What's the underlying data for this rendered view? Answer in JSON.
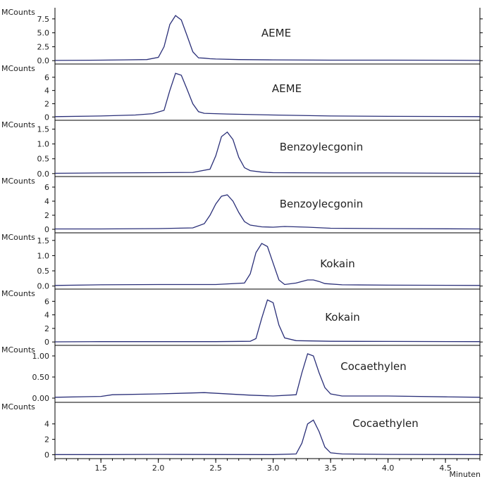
{
  "chart_data": {
    "type": "line",
    "y_unit_label": "MCounts",
    "x_unit_label": "Minuten",
    "x_range": [
      1.1,
      4.8
    ],
    "x_ticks": [
      {
        "v": 1.5,
        "label": "1.5"
      },
      {
        "v": 2.0,
        "label": "2.0"
      },
      {
        "v": 2.5,
        "label": "2.5"
      },
      {
        "v": 3.0,
        "label": "3.0"
      },
      {
        "v": 3.5,
        "label": "3.5"
      },
      {
        "v": 4.0,
        "label": "4.0"
      },
      {
        "v": 4.5,
        "label": "4.5"
      }
    ],
    "panels": [
      {
        "name": "AEME",
        "ylim": [
          -0.6,
          9.5
        ],
        "y_ticks": [
          {
            "v": 0,
            "label": "0.0"
          },
          {
            "v": 2.5,
            "label": "2.5"
          },
          {
            "v": 5,
            "label": "5.0"
          },
          {
            "v": 7.5,
            "label": "7.5"
          }
        ],
        "x": [
          1.1,
          1.5,
          1.7,
          1.9,
          2.0,
          2.05,
          2.1,
          2.15,
          2.2,
          2.25,
          2.3,
          2.35,
          2.4,
          2.45,
          2.5,
          2.7,
          3.0,
          3.5,
          4.0,
          4.5,
          4.8
        ],
        "y": [
          0.05,
          0.1,
          0.15,
          0.2,
          0.6,
          2.5,
          6.5,
          8.1,
          7.3,
          4.5,
          1.6,
          0.5,
          0.45,
          0.35,
          0.3,
          0.2,
          0.15,
          0.1,
          0.1,
          0.08,
          0.05
        ]
      },
      {
        "name": "AEME",
        "ylim": [
          -0.5,
          8.0
        ],
        "y_ticks": [
          {
            "v": 0,
            "label": "0"
          },
          {
            "v": 2,
            "label": "2"
          },
          {
            "v": 4,
            "label": "4"
          },
          {
            "v": 6,
            "label": "6"
          }
        ],
        "x": [
          1.1,
          1.5,
          1.8,
          1.95,
          2.05,
          2.1,
          2.15,
          2.2,
          2.25,
          2.3,
          2.35,
          2.4,
          2.6,
          3.0,
          3.5,
          4.0,
          4.8
        ],
        "y": [
          0.05,
          0.15,
          0.3,
          0.5,
          1.0,
          4.0,
          6.6,
          6.3,
          4.2,
          2.0,
          0.8,
          0.55,
          0.45,
          0.3,
          0.15,
          0.1,
          0.05
        ]
      },
      {
        "name": "Benzoylecgonin",
        "ylim": [
          -0.1,
          1.8
        ],
        "y_ticks": [
          {
            "v": 0,
            "label": "0.0"
          },
          {
            "v": 0.5,
            "label": "0.5"
          },
          {
            "v": 1.0,
            "label": "1.0"
          },
          {
            "v": 1.5,
            "label": "1.5"
          }
        ],
        "x": [
          1.1,
          1.5,
          2.0,
          2.3,
          2.45,
          2.5,
          2.55,
          2.6,
          2.65,
          2.7,
          2.75,
          2.8,
          2.9,
          3.0,
          3.5,
          4.0,
          4.8
        ],
        "y": [
          0.01,
          0.02,
          0.03,
          0.04,
          0.15,
          0.6,
          1.25,
          1.4,
          1.15,
          0.55,
          0.2,
          0.1,
          0.05,
          0.03,
          0.02,
          0.02,
          0.01
        ]
      },
      {
        "name": "Benzoylecgonin",
        "ylim": [
          -0.5,
          7.5
        ],
        "y_ticks": [
          {
            "v": 0,
            "label": "0"
          },
          {
            "v": 2,
            "label": "2"
          },
          {
            "v": 4,
            "label": "4"
          },
          {
            "v": 6,
            "label": "6"
          }
        ],
        "x": [
          1.1,
          1.5,
          2.0,
          2.3,
          2.4,
          2.45,
          2.5,
          2.55,
          2.6,
          2.65,
          2.7,
          2.75,
          2.8,
          2.9,
          3.0,
          3.1,
          3.3,
          3.5,
          4.0,
          4.8
        ],
        "y": [
          0.05,
          0.05,
          0.1,
          0.2,
          0.8,
          2.0,
          3.6,
          4.7,
          4.9,
          4.0,
          2.4,
          1.1,
          0.6,
          0.35,
          0.3,
          0.4,
          0.3,
          0.15,
          0.1,
          0.05
        ]
      },
      {
        "name": "Kokain",
        "ylim": [
          -0.1,
          1.75
        ],
        "y_ticks": [
          {
            "v": 0,
            "label": "0.0"
          },
          {
            "v": 0.5,
            "label": "0.5"
          },
          {
            "v": 1.0,
            "label": "1.0"
          },
          {
            "v": 1.5,
            "label": "1.5"
          }
        ],
        "x": [
          1.1,
          1.5,
          2.0,
          2.5,
          2.75,
          2.8,
          2.85,
          2.9,
          2.95,
          3.0,
          3.05,
          3.1,
          3.2,
          3.3,
          3.35,
          3.4,
          3.45,
          3.6,
          4.0,
          4.8
        ],
        "y": [
          0.02,
          0.04,
          0.05,
          0.05,
          0.1,
          0.4,
          1.1,
          1.4,
          1.3,
          0.75,
          0.2,
          0.05,
          0.1,
          0.2,
          0.2,
          0.15,
          0.08,
          0.04,
          0.03,
          0.02
        ]
      },
      {
        "name": "Kokain",
        "ylim": [
          -0.5,
          7.8
        ],
        "y_ticks": [
          {
            "v": 0,
            "label": "0"
          },
          {
            "v": 2,
            "label": "2"
          },
          {
            "v": 4,
            "label": "4"
          },
          {
            "v": 6,
            "label": "6"
          }
        ],
        "x": [
          1.1,
          1.5,
          2.0,
          2.5,
          2.8,
          2.85,
          2.9,
          2.95,
          3.0,
          3.05,
          3.1,
          3.2,
          3.5,
          4.0,
          4.8
        ],
        "y": [
          0.02,
          0.05,
          0.05,
          0.05,
          0.1,
          0.5,
          3.5,
          6.2,
          5.8,
          2.5,
          0.6,
          0.2,
          0.1,
          0.08,
          0.05
        ]
      },
      {
        "name": "Cocaethylen",
        "ylim": [
          -0.1,
          1.25
        ],
        "y_ticks": [
          {
            "v": 0,
            "label": "0.00"
          },
          {
            "v": 0.5,
            "label": "0.50"
          },
          {
            "v": 1.0,
            "label": "1.00"
          }
        ],
        "x": [
          1.1,
          1.5,
          1.6,
          2.0,
          2.4,
          2.8,
          3.0,
          3.2,
          3.25,
          3.3,
          3.35,
          3.4,
          3.45,
          3.5,
          3.6,
          4.0,
          4.5,
          4.8
        ],
        "y": [
          0.02,
          0.04,
          0.08,
          0.1,
          0.13,
          0.07,
          0.05,
          0.08,
          0.6,
          1.05,
          1.0,
          0.6,
          0.25,
          0.1,
          0.05,
          0.05,
          0.03,
          0.02
        ]
      },
      {
        "name": "Cocaethylen",
        "ylim": [
          -0.5,
          6.8
        ],
        "y_ticks": [
          {
            "v": 0,
            "label": "0"
          },
          {
            "v": 2,
            "label": "2"
          },
          {
            "v": 4,
            "label": "4"
          }
        ],
        "x": [
          1.1,
          1.5,
          2.0,
          2.5,
          3.0,
          3.2,
          3.25,
          3.3,
          3.35,
          3.4,
          3.45,
          3.5,
          3.6,
          4.0,
          4.8
        ],
        "y": [
          0.02,
          0.02,
          0.05,
          0.03,
          0.02,
          0.1,
          1.5,
          4.0,
          4.5,
          3.0,
          1.0,
          0.25,
          0.1,
          0.05,
          0.02
        ]
      }
    ]
  }
}
